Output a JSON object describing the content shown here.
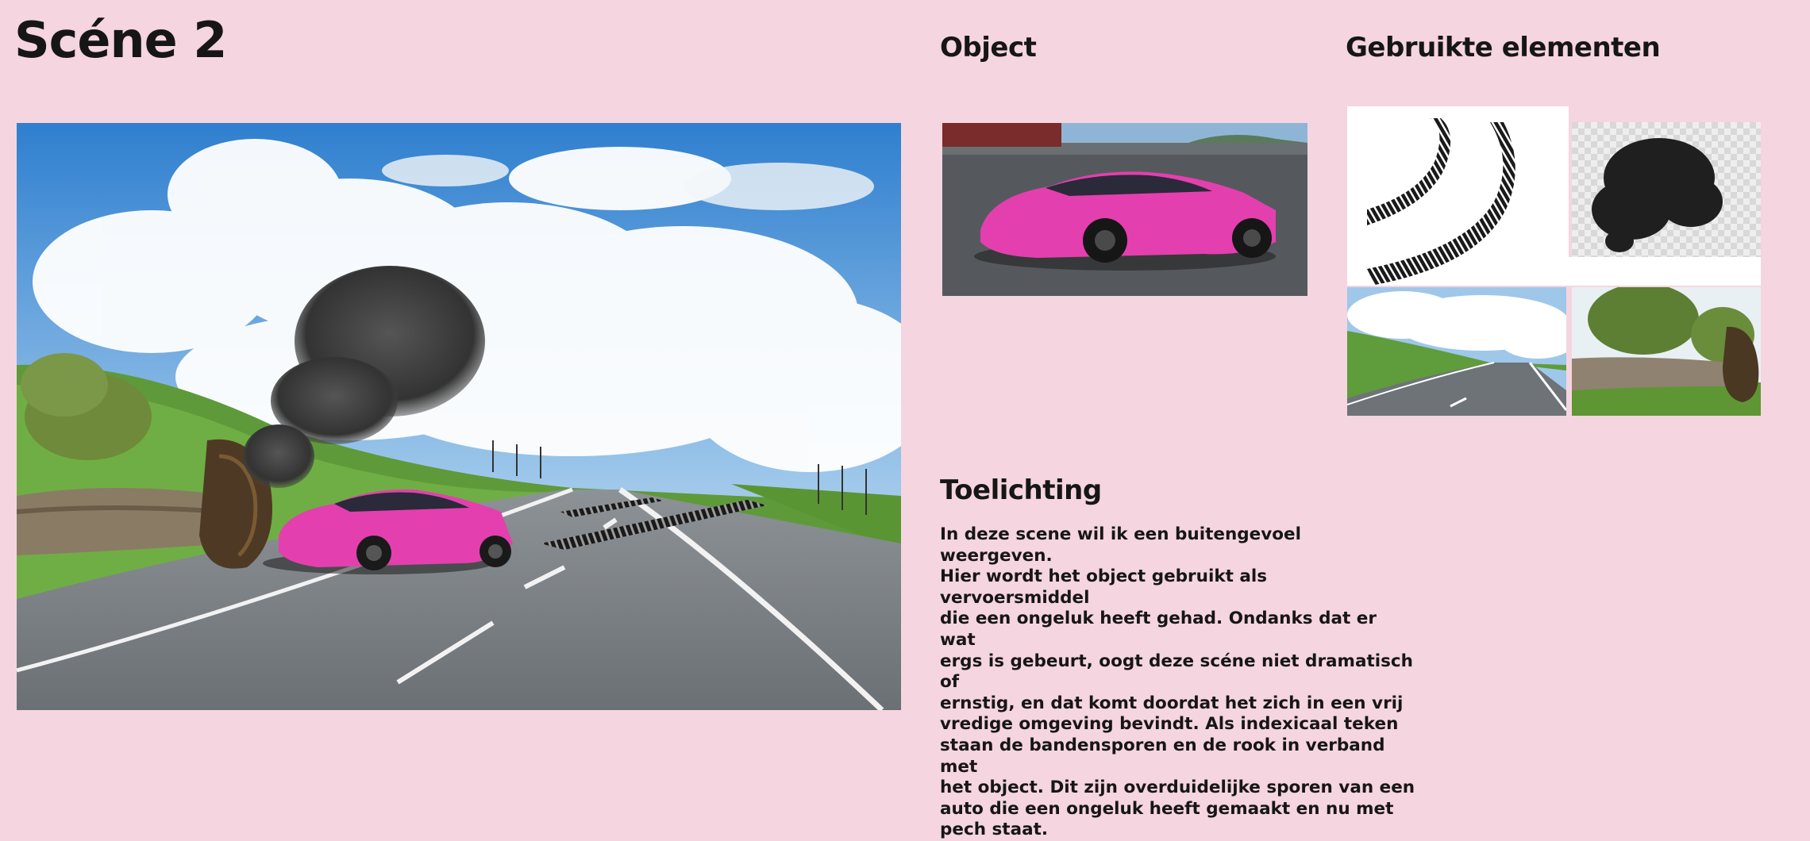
{
  "page": {
    "title": "Scéne 2",
    "object_heading": "Object",
    "elements_heading": "Gebruikte elementen",
    "explanation_heading": "Toelichting",
    "explanation_lines": [
      "In deze scene wil ik een buitengevoel weergeven.",
      "Hier wordt het object gebruikt als vervoersmiddel",
      "die een ongeluk heeft gehad. Ondanks dat er wat",
      "ergs is gebeurt, oogt deze scéne niet dramatisch of",
      "ernstig, en dat komt doordat het zich in een vrij",
      "vredige omgeving bevindt. Als indexicaal teken",
      "staan de bandensporen en de rook in verband met",
      "het object. Dit zijn overduidelijke sporen van een",
      "auto die een ongeluk heeft gemaakt en nu met",
      "pech staat."
    ]
  },
  "colors": {
    "background": "#f5d5df",
    "text": "#161616",
    "car_pink": "#e43fae",
    "sky": "#3f8fd6"
  }
}
